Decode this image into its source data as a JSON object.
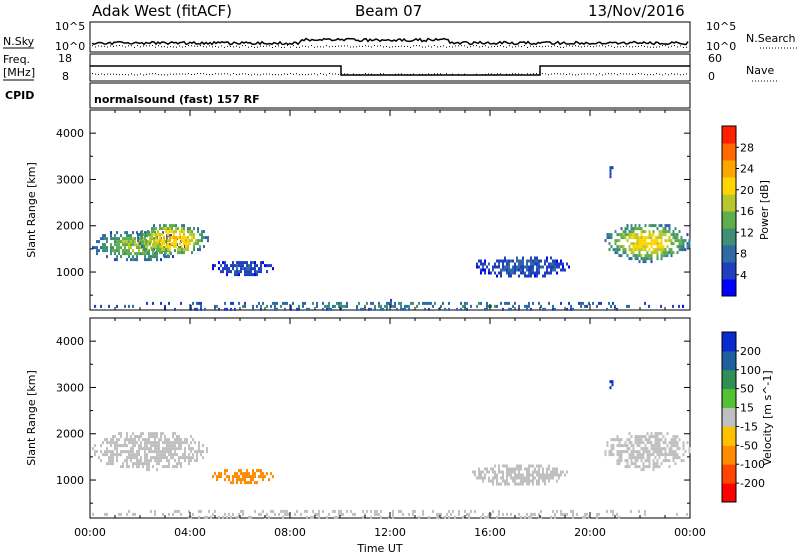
{
  "header": {
    "station": "Adak West (fitACF)",
    "beam": "Beam 07",
    "date": "13/Nov/2016"
  },
  "noise_panel": {
    "left_label": "N.Sky",
    "left_ticks": [
      "10^5",
      "10^0"
    ],
    "right_label": "N.Search",
    "right_ticks": [
      "10^5",
      "10^0"
    ]
  },
  "freq_panel": {
    "left_label_1": "Freq.",
    "left_label_2": "[MHz]",
    "left_ticks": [
      "18",
      "8"
    ],
    "right_label": "Nave",
    "right_ticks": [
      "60",
      "0"
    ]
  },
  "cpid": {
    "label": "CPID",
    "mode": "normalsound (fast) 157 RF"
  },
  "chart_data": [
    {
      "type": "heatmap",
      "name": "power",
      "ylabel": "Slant Range [km]",
      "ylim": [
        180,
        4500
      ],
      "yticks": [
        "1000",
        "2000",
        "3000",
        "4000"
      ],
      "xlim_hours": [
        0,
        24
      ],
      "colorbar": {
        "label": "Power [dB]",
        "range": [
          0,
          30
        ],
        "ticks": [
          "28",
          "24",
          "20",
          "16",
          "12",
          "8",
          "4"
        ],
        "colors": [
          "#0000ff",
          "#1f3fbf",
          "#2e6aa6",
          "#3f8f77",
          "#5fae4b",
          "#b9c72f",
          "#ffd700",
          "#ffa500",
          "#ff6a00",
          "#ff2000"
        ]
      },
      "echo_regions": [
        {
          "t0": 0.0,
          "t1": 3.8,
          "r0": 1250,
          "r1": 1950,
          "level": 16
        },
        {
          "t0": 1.8,
          "t1": 4.7,
          "r0": 1350,
          "r1": 2100,
          "level": 22
        },
        {
          "t0": 4.8,
          "t1": 7.3,
          "r0": 950,
          "r1": 1300,
          "level": 5
        },
        {
          "t0": 15.2,
          "t1": 19.2,
          "r0": 900,
          "r1": 1400,
          "level": 6
        },
        {
          "t0": 20.5,
          "t1": 24.0,
          "r0": 1250,
          "r1": 2100,
          "level": 20
        },
        {
          "t0": 20.7,
          "t1": 20.9,
          "r0": 3000,
          "r1": 3350,
          "level": 5
        },
        {
          "t0": 0.0,
          "t1": 24.0,
          "r0": 180,
          "r1": 420,
          "level": 9
        }
      ]
    },
    {
      "type": "heatmap",
      "name": "velocity",
      "ylabel": "Slant Range [km]",
      "ylim": [
        180,
        4500
      ],
      "yticks": [
        "1000",
        "2000",
        "3000",
        "4000"
      ],
      "xlim_hours": [
        0,
        24
      ],
      "colorbar": {
        "label": "Velocity [m s^-1]",
        "ticks": [
          "200",
          "100",
          "50",
          "15",
          "-15",
          "-50",
          "-100",
          "-200"
        ],
        "colors": [
          "#0a2bd0",
          "#1f5fa0",
          "#2f8f55",
          "#55c235",
          "#c0c0c0",
          "#ffc000",
          "#ff8c00",
          "#ff4500",
          "#ff0000"
        ]
      },
      "echo_regions": [
        {
          "t0": 0.0,
          "t1": 4.7,
          "r0": 1250,
          "r1": 2100,
          "velocity": 0
        },
        {
          "t0": 4.8,
          "t1": 7.3,
          "r0": 950,
          "r1": 1300,
          "velocity": -60
        },
        {
          "t0": 15.2,
          "t1": 19.2,
          "r0": 900,
          "r1": 1400,
          "velocity": 0
        },
        {
          "t0": 20.5,
          "t1": 24.0,
          "r0": 1250,
          "r1": 2100,
          "velocity": 0
        },
        {
          "t0": 20.7,
          "t1": 20.9,
          "r0": 3000,
          "r1": 3350,
          "velocity": 220
        },
        {
          "t0": 0.0,
          "t1": 24.0,
          "r0": 180,
          "r1": 420,
          "velocity": 0
        }
      ]
    }
  ],
  "xaxis": {
    "ticks": [
      "00:00",
      "04:00",
      "08:00",
      "12:00",
      "16:00",
      "20:00",
      "00:00"
    ],
    "label": "Time UT"
  }
}
